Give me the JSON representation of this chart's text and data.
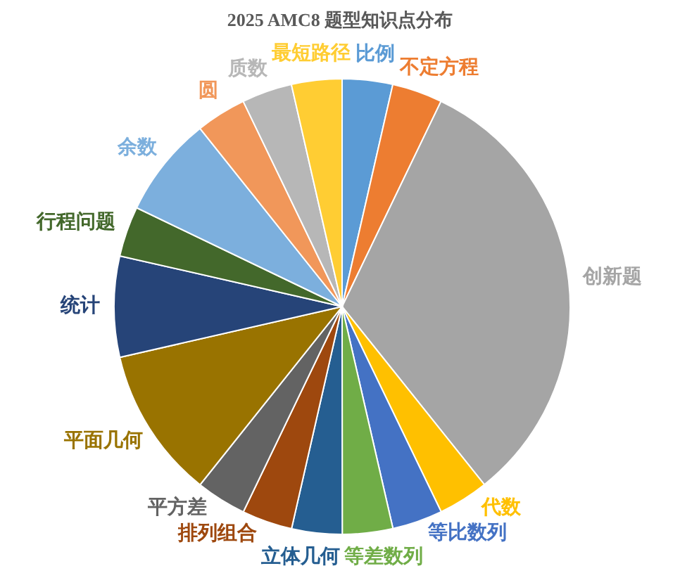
{
  "chart_data": {
    "type": "pie",
    "title": "2025 AMC8 题型知识点分布",
    "categories": [
      "比例",
      "不定方程",
      "创新题",
      "代数",
      "等比数列",
      "等差数列",
      "立体几何",
      "排列组合",
      "平方差",
      "平面几何",
      "统计",
      "行程问题",
      "余数",
      "圆",
      "质数",
      "最短路径"
    ],
    "values": [
      3.57,
      3.57,
      32.14,
      3.57,
      3.57,
      3.57,
      3.57,
      3.57,
      3.57,
      10.72,
      7.15,
      3.57,
      7.15,
      3.57,
      3.57,
      3.57
    ],
    "colors": [
      "#5b9bd5",
      "#ed7d31",
      "#a5a5a5",
      "#ffc000",
      "#4472c4",
      "#70ad47",
      "#255e91",
      "#9e480e",
      "#636363",
      "#997300",
      "#264478",
      "#43682b",
      "#7cafdd",
      "#f1975a",
      "#b7b7b7",
      "#ffcd33"
    ]
  }
}
